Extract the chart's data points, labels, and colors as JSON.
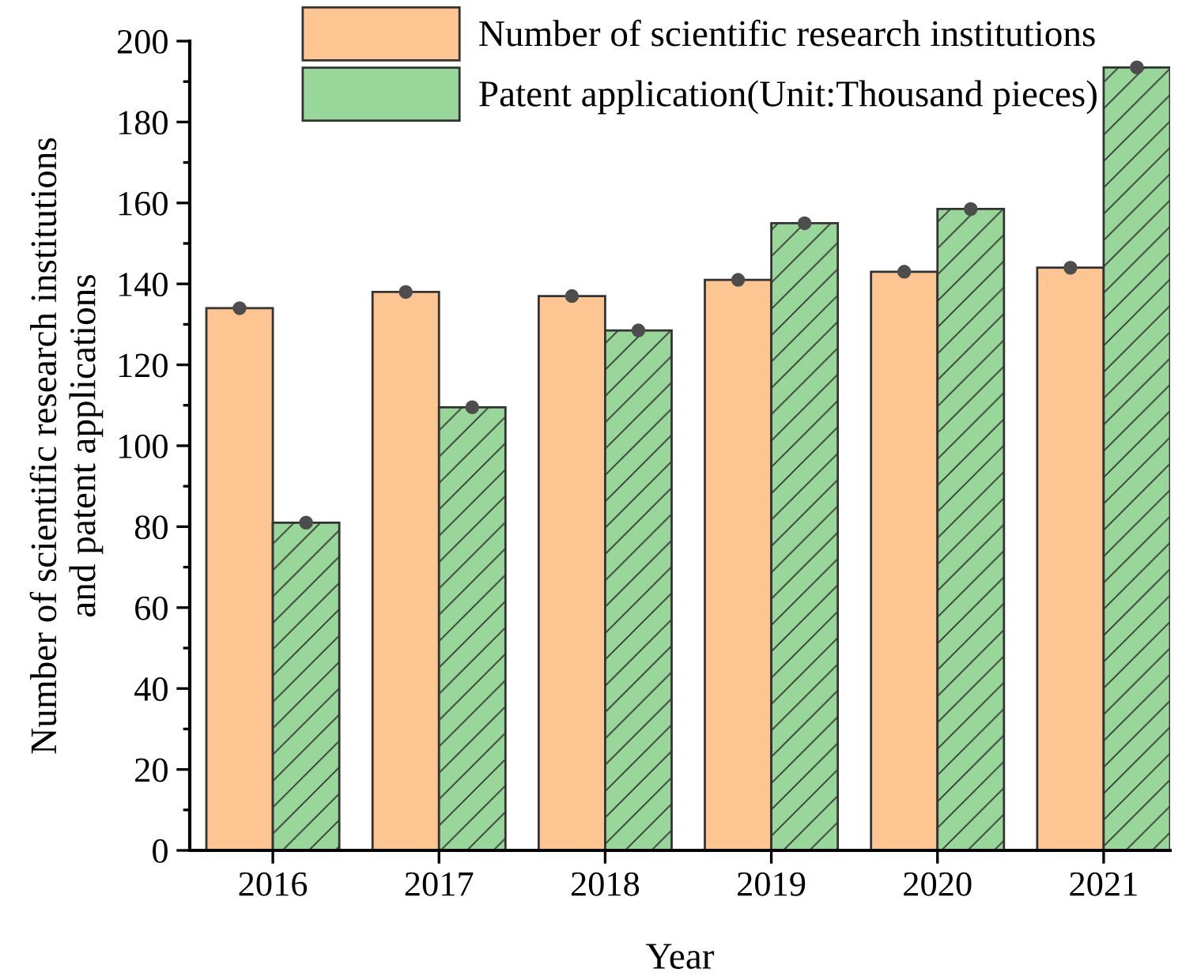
{
  "chart_data": {
    "type": "bar",
    "xlabel": "Year",
    "ylabel": "Number of scientific research institutions\nand patent applications",
    "categories": [
      "2016",
      "2017",
      "2018",
      "2019",
      "2020",
      "2021"
    ],
    "series": [
      {
        "name": "Number of scientific research institutions",
        "color": "#fdc591",
        "values": [
          134,
          138,
          137,
          141,
          143,
          144
        ]
      },
      {
        "name": "Patent application(Unit:Thousand pieces)",
        "color": "#98d69a",
        "values": [
          81,
          109.5,
          128.5,
          155,
          158.5,
          193.5
        ]
      },
      {
        "type": "scatter",
        "color": "#4d4d4d",
        "values": [
          134,
          138,
          137,
          141,
          143,
          144
        ]
      },
      {
        "type": "scatter",
        "color": "#4d4d4d",
        "values": [
          81,
          109.5,
          128.5,
          155,
          158.5,
          193.5
        ]
      }
    ],
    "ylim": [
      0,
      200
    ],
    "yticks": [
      0,
      20,
      40,
      60,
      80,
      100,
      120,
      140,
      160,
      180,
      200
    ],
    "grid": false,
    "legend": "top left",
    "marker": "circle"
  }
}
